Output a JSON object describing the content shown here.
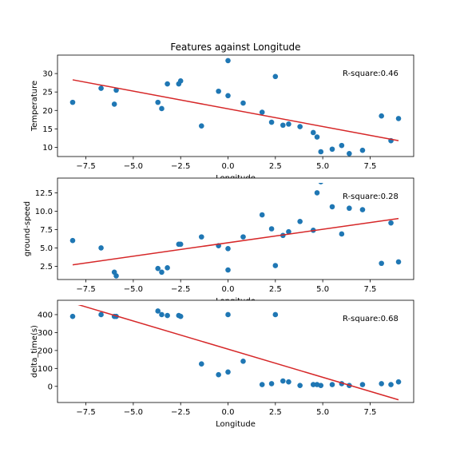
{
  "chart_data": {
    "type": "scatter",
    "title": "Features against Longitude",
    "xlim": [
      -9.0,
      9.8
    ],
    "x_ticks": [
      -7.5,
      -5.0,
      -2.5,
      0.0,
      2.5,
      5.0,
      7.5
    ],
    "x_tick_labels": [
      "−7.5",
      "−5.0",
      "−2.5",
      "0.0",
      "2.5",
      "5.0",
      "7.5"
    ],
    "x": [
      -8.2,
      -6.7,
      -6.0,
      -5.9,
      -3.7,
      -3.5,
      -3.2,
      -2.6,
      -2.5,
      -1.4,
      -0.5,
      0.0,
      0.0,
      0.8,
      1.8,
      2.3,
      2.5,
      2.9,
      3.2,
      3.8,
      4.5,
      4.7,
      4.9,
      5.5,
      6.0,
      6.4,
      7.1,
      8.1,
      8.6,
      9.0
    ],
    "charts": [
      {
        "ylabel": "Temperature",
        "xlabel": "Longitude",
        "ylim": [
          7.5,
          35
        ],
        "y_ticks": [
          10,
          15,
          20,
          25,
          30
        ],
        "y_tick_labels": [
          "10",
          "15",
          "20",
          "25",
          "30"
        ],
        "values": [
          22.2,
          26.0,
          21.7,
          25.5,
          22.2,
          20.5,
          27.2,
          27.2,
          28.0,
          15.8,
          25.2,
          24.0,
          33.5,
          22.0,
          19.5,
          16.8,
          29.2,
          16.0,
          16.3,
          15.6,
          14.0,
          12.8,
          8.8,
          9.5,
          10.5,
          8.3,
          9.2,
          18.5,
          11.8,
          17.8
        ],
        "fit": {
          "start": [
            -8.2,
            28.3
          ],
          "end": [
            9.0,
            11.8
          ]
        },
        "annotation": "R-square:0.46"
      },
      {
        "ylabel": "ground-speed",
        "xlabel": "Longitude",
        "ylim": [
          0.7,
          14.5
        ],
        "y_ticks": [
          2.5,
          5.0,
          7.5,
          10.0,
          12.5
        ],
        "y_tick_labels": [
          "2.5",
          "5.0",
          "7.5",
          "10.0",
          "12.5"
        ],
        "values": [
          6.0,
          5.0,
          1.7,
          1.2,
          2.2,
          1.7,
          2.3,
          5.5,
          5.5,
          6.5,
          5.3,
          2.0,
          4.9,
          6.5,
          9.5,
          7.6,
          2.6,
          6.7,
          7.2,
          8.6,
          7.4,
          12.5,
          14.0,
          10.6,
          6.9,
          10.4,
          10.2,
          2.9,
          8.4,
          3.1
        ],
        "fit": {
          "start": [
            -8.2,
            2.7
          ],
          "end": [
            9.0,
            9.0
          ]
        },
        "annotation": "R-square:0.28"
      },
      {
        "ylabel": "delta_time(s)",
        "xlabel": "Longitude",
        "ylim": [
          -90,
          480
        ],
        "y_ticks": [
          0,
          100,
          200,
          300,
          400
        ],
        "y_tick_labels": [
          "0",
          "100",
          "200",
          "300",
          "400"
        ],
        "values": [
          390,
          400,
          390,
          390,
          420,
          400,
          395,
          395,
          390,
          125,
          65,
          400,
          80,
          140,
          10,
          15,
          400,
          30,
          25,
          5,
          10,
          10,
          5,
          10,
          15,
          5,
          10,
          15,
          10,
          25
        ],
        "fit": {
          "start": [
            -8.2,
            465
          ],
          "end": [
            9.0,
            -75
          ]
        },
        "annotation": "R-square:0.68"
      }
    ]
  },
  "colors": {
    "points": "#1f77b4",
    "fit_line": "#d62728"
  }
}
